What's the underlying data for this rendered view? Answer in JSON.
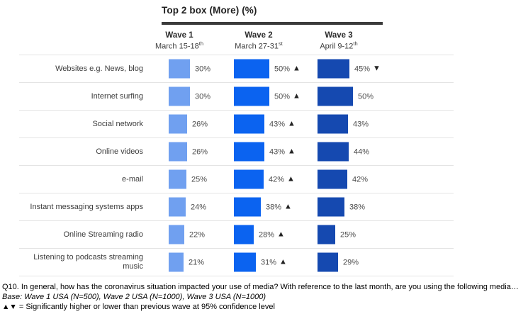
{
  "title": "Top 2 box (More) (%)",
  "columns": [
    {
      "label": "Wave 1",
      "date": "March 15-18",
      "date_sup": "th"
    },
    {
      "label": "Wave 2",
      "date": "March 27-31",
      "date_sup": "st"
    },
    {
      "label": "Wave 3",
      "date": "April 9-12",
      "date_sup": "th"
    }
  ],
  "rows": [
    {
      "label": "Websites e.g. News, blog",
      "values": [
        30,
        50,
        45
      ],
      "display": [
        "30%",
        "50%",
        "45%"
      ],
      "arrows": [
        "",
        "up",
        "down"
      ]
    },
    {
      "label": "Internet surfing",
      "values": [
        30,
        50,
        50
      ],
      "display": [
        "30%",
        "50%",
        "50%"
      ],
      "arrows": [
        "",
        "up",
        ""
      ]
    },
    {
      "label": "Social network",
      "values": [
        26,
        43,
        43
      ],
      "display": [
        "26%",
        "43%",
        "43%"
      ],
      "arrows": [
        "",
        "up",
        ""
      ]
    },
    {
      "label": "Online videos",
      "values": [
        26,
        43,
        44
      ],
      "display": [
        "26%",
        "43%",
        "44%"
      ],
      "arrows": [
        "",
        "up",
        ""
      ]
    },
    {
      "label": "e-mail",
      "values": [
        25,
        42,
        42
      ],
      "display": [
        "25%",
        "42%",
        "42%"
      ],
      "arrows": [
        "",
        "up",
        ""
      ]
    },
    {
      "label": "Instant messaging systems apps",
      "values": [
        24,
        38,
        38
      ],
      "display": [
        "24%",
        "38%",
        "38%"
      ],
      "arrows": [
        "",
        "up",
        ""
      ]
    },
    {
      "label": "Online Streaming radio",
      "values": [
        22,
        28,
        25
      ],
      "display": [
        "22%",
        "28%",
        "25%"
      ],
      "arrows": [
        "",
        "up",
        ""
      ]
    },
    {
      "label": "Listening to podcasts streaming music",
      "values": [
        21,
        31,
        29
      ],
      "display": [
        "21%",
        "31%",
        "29%"
      ],
      "arrows": [
        "",
        "up",
        ""
      ]
    }
  ],
  "colors": {
    "waves": [
      "#70A0F0",
      "#0B63F0",
      "#1549B0"
    ],
    "separator": "#e4e4e4",
    "title_rule": "#3b3b3b"
  },
  "icons": {
    "up_arrow": "▲",
    "down_arrow": "▼"
  },
  "footer": {
    "question": "Q10. In general, how has the coronavirus situation impacted your use of media? With reference to the last month, are you using the following media…",
    "base": "Base: Wave 1 USA (N=500), Wave 2 USA (N=1000), Wave 3 USA (N=1000)",
    "legend_symbols": "▲▼",
    "legend_text": " = Significantly higher or lower than previous wave at 95% confidence level"
  },
  "chart_data": {
    "type": "bar",
    "orientation": "horizontal",
    "title": "Top 2 box (More) (%)",
    "categories": [
      "Websites e.g. News, blog",
      "Internet surfing",
      "Social network",
      "Online videos",
      "e-mail",
      "Instant messaging systems apps",
      "Online Streaming radio",
      "Listening to podcasts streaming music"
    ],
    "series": [
      {
        "name": "Wave 1 (March 15-18th)",
        "values": [
          30,
          30,
          26,
          26,
          25,
          24,
          22,
          21
        ]
      },
      {
        "name": "Wave 2 (March 27-31st)",
        "values": [
          50,
          50,
          43,
          43,
          42,
          38,
          28,
          31
        ],
        "significance_vs_previous_wave": [
          "up",
          "up",
          "up",
          "up",
          "up",
          "up",
          "up",
          "up"
        ]
      },
      {
        "name": "Wave 3 (April 9-12th)",
        "values": [
          45,
          50,
          43,
          44,
          42,
          38,
          25,
          29
        ],
        "significance_vs_previous_wave": [
          "down",
          "",
          "",
          "",
          "",
          "",
          "",
          ""
        ]
      }
    ],
    "value_format": "percent",
    "xlim": [
      0,
      100
    ],
    "grid": false,
    "legend_position": "column-headers",
    "annotations": "▲▼ = Significantly higher or lower than previous wave at 95% confidence level"
  }
}
